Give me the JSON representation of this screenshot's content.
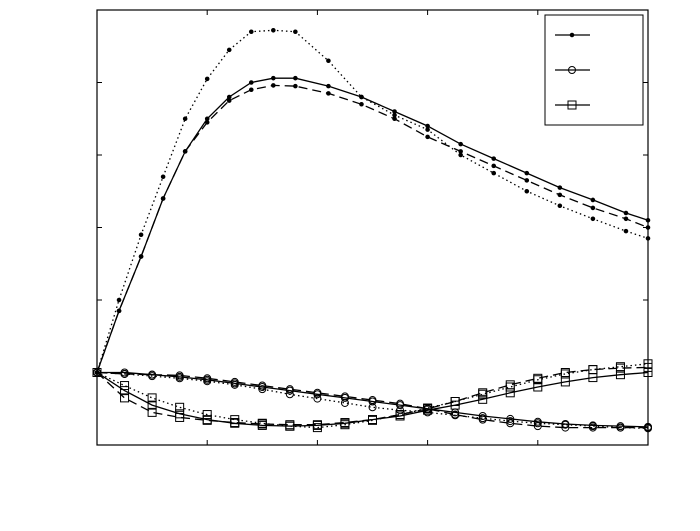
{
  "chart_data": {
    "type": "line",
    "title": "",
    "xlabel": "",
    "ylabel": "",
    "tick_labels_visible": false,
    "xlim": [
      0,
      5
    ],
    "ylim": [
      -1,
      5
    ],
    "xticks": [
      0,
      1,
      2,
      3,
      4,
      5
    ],
    "yticks": [
      -1,
      0,
      1,
      2,
      3,
      4,
      5
    ],
    "grid": false,
    "legend": {
      "placement": "top-right",
      "entries": [
        "",
        "",
        ""
      ]
    },
    "series": [
      {
        "marker": "dot",
        "lines": [
          {
            "style": "solid",
            "points": [
              [
                0,
                0
              ],
              [
                0.2,
                0.85
              ],
              [
                0.4,
                1.6
              ],
              [
                0.6,
                2.4
              ],
              [
                0.8,
                3.05
              ],
              [
                1.0,
                3.5
              ],
              [
                1.2,
                3.8
              ],
              [
                1.4,
                4.0
              ],
              [
                1.6,
                4.06
              ],
              [
                1.8,
                4.06
              ],
              [
                2.1,
                3.95
              ],
              [
                2.4,
                3.8
              ],
              [
                2.7,
                3.6
              ],
              [
                3.0,
                3.4
              ],
              [
                3.3,
                3.15
              ],
              [
                3.6,
                2.95
              ],
              [
                3.9,
                2.75
              ],
              [
                4.2,
                2.55
              ],
              [
                4.5,
                2.38
              ],
              [
                4.8,
                2.2
              ],
              [
                5.0,
                2.1
              ]
            ]
          },
          {
            "style": "dashed",
            "points": [
              [
                0,
                0
              ],
              [
                0.2,
                0.85
              ],
              [
                0.4,
                1.6
              ],
              [
                0.6,
                2.4
              ],
              [
                0.8,
                3.05
              ],
              [
                1.0,
                3.45
              ],
              [
                1.2,
                3.75
              ],
              [
                1.4,
                3.9
              ],
              [
                1.6,
                3.96
              ],
              [
                1.8,
                3.95
              ],
              [
                2.1,
                3.85
              ],
              [
                2.4,
                3.7
              ],
              [
                2.7,
                3.5
              ],
              [
                3.0,
                3.25
              ],
              [
                3.3,
                3.05
              ],
              [
                3.6,
                2.85
              ],
              [
                3.9,
                2.65
              ],
              [
                4.2,
                2.45
              ],
              [
                4.5,
                2.27
              ],
              [
                4.8,
                2.12
              ],
              [
                5.0,
                2.0
              ]
            ]
          },
          {
            "style": "dotted",
            "points": [
              [
                0,
                0
              ],
              [
                0.2,
                1.0
              ],
              [
                0.4,
                1.9
              ],
              [
                0.6,
                2.7
              ],
              [
                0.8,
                3.5
              ],
              [
                1.0,
                4.05
              ],
              [
                1.2,
                4.45
              ],
              [
                1.4,
                4.7
              ],
              [
                1.6,
                4.72
              ],
              [
                1.8,
                4.7
              ],
              [
                2.1,
                4.3
              ],
              [
                2.4,
                3.8
              ],
              [
                2.7,
                3.55
              ],
              [
                3.0,
                3.35
              ],
              [
                3.3,
                3.0
              ],
              [
                3.6,
                2.75
              ],
              [
                3.9,
                2.5
              ],
              [
                4.2,
                2.3
              ],
              [
                4.5,
                2.12
              ],
              [
                4.8,
                1.95
              ],
              [
                5.0,
                1.85
              ]
            ]
          }
        ]
      },
      {
        "marker": "circle",
        "lines": [
          {
            "style": "solid",
            "points": [
              [
                0,
                0
              ],
              [
                0.25,
                0
              ],
              [
                0.5,
                -0.03
              ],
              [
                0.75,
                -0.06
              ],
              [
                1.0,
                -0.1
              ],
              [
                1.25,
                -0.15
              ],
              [
                1.5,
                -0.2
              ],
              [
                1.75,
                -0.25
              ],
              [
                2.0,
                -0.3
              ],
              [
                2.25,
                -0.35
              ],
              [
                2.5,
                -0.4
              ],
              [
                2.75,
                -0.45
              ],
              [
                3.0,
                -0.5
              ],
              [
                3.25,
                -0.55
              ],
              [
                3.5,
                -0.6
              ],
              [
                3.75,
                -0.64
              ],
              [
                4.0,
                -0.68
              ],
              [
                4.25,
                -0.71
              ],
              [
                4.5,
                -0.73
              ],
              [
                4.75,
                -0.74
              ],
              [
                5.0,
                -0.75
              ]
            ]
          },
          {
            "style": "dashed",
            "points": [
              [
                0,
                0
              ],
              [
                0.25,
                -0.02
              ],
              [
                0.5,
                -0.03
              ],
              [
                0.75,
                -0.04
              ],
              [
                1.0,
                -0.08
              ],
              [
                1.25,
                -0.13
              ],
              [
                1.5,
                -0.18
              ],
              [
                1.75,
                -0.23
              ],
              [
                2.0,
                -0.28
              ],
              [
                2.25,
                -0.33
              ],
              [
                2.5,
                -0.38
              ],
              [
                2.75,
                -0.43
              ],
              [
                3.0,
                -0.5
              ],
              [
                3.25,
                -0.58
              ],
              [
                3.5,
                -0.65
              ],
              [
                3.75,
                -0.7
              ],
              [
                4.0,
                -0.74
              ],
              [
                4.25,
                -0.76
              ],
              [
                4.5,
                -0.76
              ],
              [
                4.75,
                -0.76
              ],
              [
                5.0,
                -0.76
              ]
            ]
          },
          {
            "style": "dotted",
            "points": [
              [
                0,
                0
              ],
              [
                0.25,
                -0.02
              ],
              [
                0.5,
                -0.05
              ],
              [
                0.75,
                -0.08
              ],
              [
                1.0,
                -0.12
              ],
              [
                1.25,
                -0.17
              ],
              [
                1.5,
                -0.23
              ],
              [
                1.75,
                -0.3
              ],
              [
                2.0,
                -0.36
              ],
              [
                2.25,
                -0.42
              ],
              [
                2.5,
                -0.48
              ],
              [
                2.75,
                -0.52
              ],
              [
                3.0,
                -0.55
              ],
              [
                3.25,
                -0.59
              ],
              [
                3.5,
                -0.63
              ],
              [
                3.75,
                -0.67
              ],
              [
                4.0,
                -0.7
              ],
              [
                4.25,
                -0.72
              ],
              [
                4.5,
                -0.74
              ],
              [
                4.75,
                -0.76
              ],
              [
                5.0,
                -0.77
              ]
            ]
          }
        ]
      },
      {
        "marker": "square",
        "lines": [
          {
            "style": "solid",
            "points": [
              [
                0,
                0
              ],
              [
                0.25,
                -0.25
              ],
              [
                0.5,
                -0.45
              ],
              [
                0.75,
                -0.57
              ],
              [
                1.0,
                -0.65
              ],
              [
                1.25,
                -0.7
              ],
              [
                1.5,
                -0.73
              ],
              [
                1.75,
                -0.74
              ],
              [
                2.0,
                -0.73
              ],
              [
                2.25,
                -0.7
              ],
              [
                2.5,
                -0.65
              ],
              [
                2.75,
                -0.6
              ],
              [
                3.0,
                -0.52
              ],
              [
                3.25,
                -0.45
              ],
              [
                3.5,
                -0.37
              ],
              [
                3.75,
                -0.28
              ],
              [
                4.0,
                -0.2
              ],
              [
                4.25,
                -0.13
              ],
              [
                4.5,
                -0.07
              ],
              [
                4.75,
                -0.03
              ],
              [
                5.0,
                0
              ]
            ]
          },
          {
            "style": "dashed",
            "points": [
              [
                0,
                0
              ],
              [
                0.25,
                -0.35
              ],
              [
                0.5,
                -0.55
              ],
              [
                0.75,
                -0.62
              ],
              [
                1.0,
                -0.66
              ],
              [
                1.25,
                -0.69
              ],
              [
                1.5,
                -0.71
              ],
              [
                1.75,
                -0.72
              ],
              [
                2.0,
                -0.72
              ],
              [
                2.25,
                -0.69
              ],
              [
                2.5,
                -0.65
              ],
              [
                2.75,
                -0.58
              ],
              [
                3.0,
                -0.5
              ],
              [
                3.25,
                -0.4
              ],
              [
                3.5,
                -0.28
              ],
              [
                3.75,
                -0.17
              ],
              [
                4.0,
                -0.08
              ],
              [
                4.25,
                0
              ],
              [
                4.5,
                0.04
              ],
              [
                4.75,
                0.06
              ],
              [
                5.0,
                0.07
              ]
            ]
          },
          {
            "style": "dotted",
            "points": [
              [
                0,
                0
              ],
              [
                0.25,
                -0.18
              ],
              [
                0.5,
                -0.35
              ],
              [
                0.75,
                -0.48
              ],
              [
                1.0,
                -0.58
              ],
              [
                1.25,
                -0.65
              ],
              [
                1.5,
                -0.7
              ],
              [
                1.75,
                -0.74
              ],
              [
                2.0,
                -0.76
              ],
              [
                2.25,
                -0.72
              ],
              [
                2.5,
                -0.66
              ],
              [
                2.75,
                -0.58
              ],
              [
                3.0,
                -0.49
              ],
              [
                3.25,
                -0.4
              ],
              [
                3.5,
                -0.3
              ],
              [
                3.75,
                -0.2
              ],
              [
                4.0,
                -0.1
              ],
              [
                4.25,
                -0.02
              ],
              [
                4.5,
                0.04
              ],
              [
                4.75,
                0.08
              ],
              [
                5.0,
                0.12
              ]
            ]
          }
        ]
      }
    ]
  }
}
